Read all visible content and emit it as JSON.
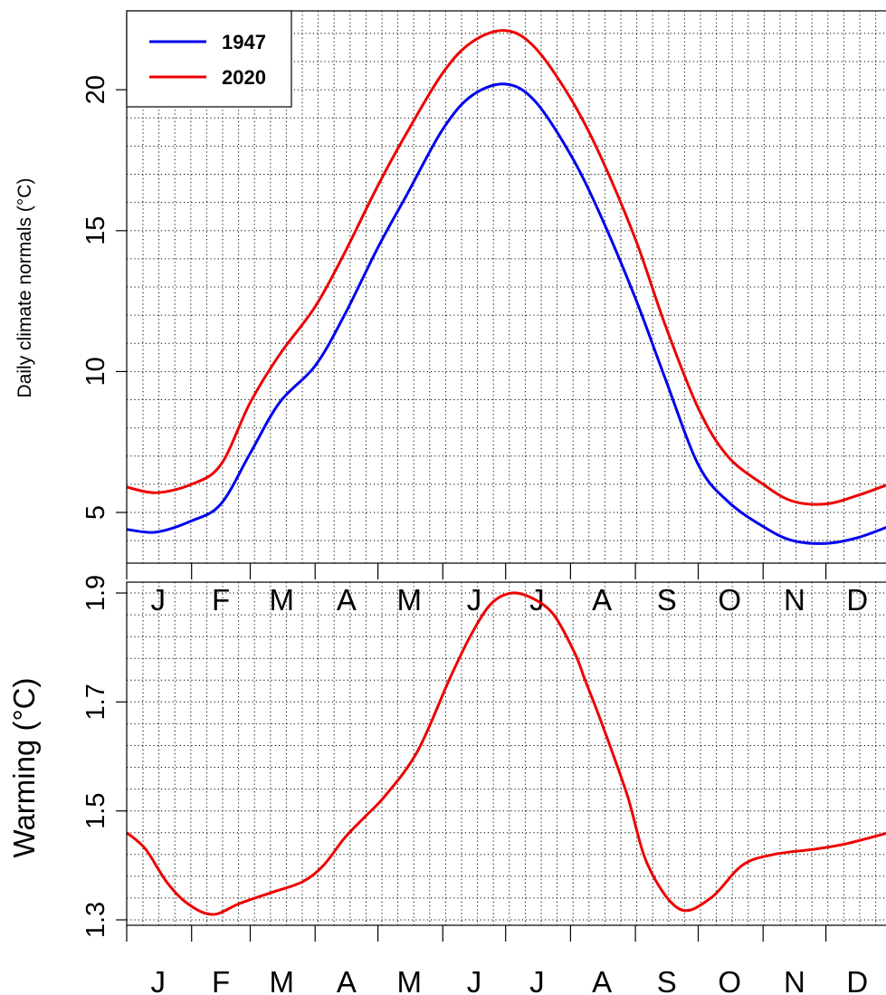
{
  "chart_data": [
    {
      "type": "line",
      "ylabel": "Daily climate normals (°C)",
      "xlabel": "",
      "x_tick_labels": [
        "J",
        "F",
        "M",
        "A",
        "M",
        "J",
        "J",
        "A",
        "S",
        "O",
        "N",
        "D"
      ],
      "x_unit": "day of year",
      "xlim": [
        1,
        365
      ],
      "ylim": [
        3.2,
        22.8
      ],
      "y_ticks": [
        5,
        10,
        15,
        20
      ],
      "grid": true,
      "legend": "top-left",
      "x": [
        1,
        15,
        32,
        46,
        60,
        74,
        91,
        105,
        121,
        135,
        152,
        166,
        182,
        196,
        213,
        227,
        244,
        258,
        274,
        288,
        305,
        319,
        335,
        350,
        365
      ],
      "series": [
        {
          "name": "1947",
          "color": "#0000ee",
          "values": [
            4.4,
            4.3,
            4.7,
            5.3,
            7.1,
            8.9,
            10.2,
            12.0,
            14.4,
            16.3,
            18.6,
            19.8,
            20.2,
            19.6,
            17.7,
            15.6,
            12.6,
            9.8,
            6.7,
            5.4,
            4.5,
            4.0,
            3.9,
            4.1,
            4.5
          ]
        },
        {
          "name": "2020",
          "color": "#ee0000",
          "values": [
            5.9,
            5.7,
            6.0,
            6.7,
            8.9,
            10.6,
            12.3,
            14.2,
            16.6,
            18.5,
            20.6,
            21.7,
            22.1,
            21.5,
            19.7,
            17.7,
            14.7,
            11.7,
            8.7,
            7.0,
            6.0,
            5.4,
            5.3,
            5.6,
            6.0
          ]
        }
      ]
    },
    {
      "type": "line",
      "ylabel": "Warming (°C)",
      "xlabel": "",
      "x_tick_labels": [
        "J",
        "F",
        "M",
        "A",
        "M",
        "J",
        "J",
        "A",
        "S",
        "O",
        "N",
        "D"
      ],
      "x_unit": "day of year",
      "xlim": [
        1,
        365
      ],
      "ylim": [
        1.29,
        1.92
      ],
      "y_ticks": [
        1.3,
        1.5,
        1.7,
        1.9
      ],
      "y_tick_labels": [
        "1.3",
        "1.5",
        "1.7",
        "1.9"
      ],
      "grid": true,
      "x": [
        1,
        10,
        20,
        30,
        42,
        55,
        70,
        85,
        95,
        105,
        115,
        125,
        140,
        155,
        165,
        175,
        185,
        195,
        205,
        215,
        220,
        228,
        240,
        250,
        265,
        280,
        295,
        310,
        330,
        345,
        365
      ],
      "series": [
        {
          "name": "",
          "color": "#ee0000",
          "values": [
            1.46,
            1.43,
            1.37,
            1.33,
            1.31,
            1.33,
            1.35,
            1.37,
            1.4,
            1.45,
            1.49,
            1.53,
            1.61,
            1.74,
            1.82,
            1.88,
            1.9,
            1.89,
            1.86,
            1.79,
            1.74,
            1.66,
            1.53,
            1.4,
            1.32,
            1.34,
            1.4,
            1.42,
            1.43,
            1.44,
            1.46
          ]
        }
      ]
    }
  ]
}
